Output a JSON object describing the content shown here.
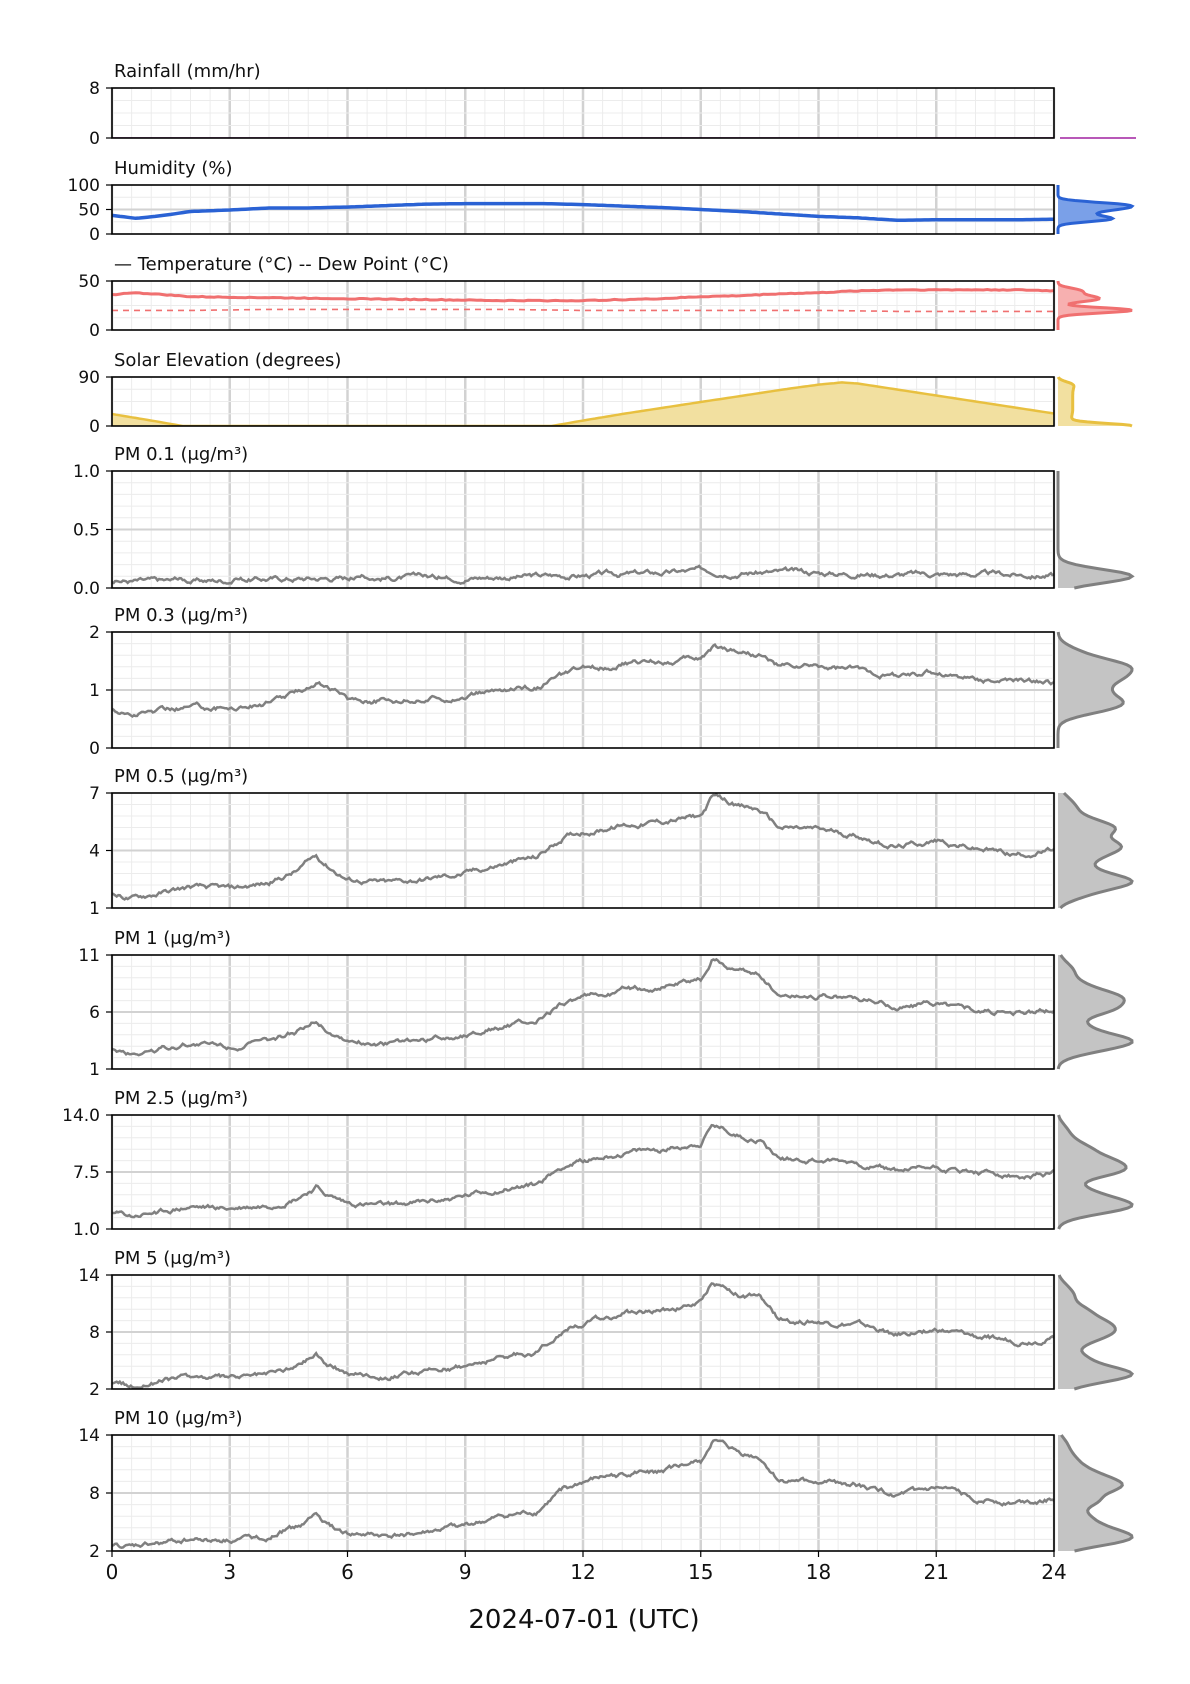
{
  "figure": {
    "xlabel": "2024-07-01 (UTC)"
  },
  "colors": {
    "rainfall": "#a020a0",
    "humidity": "#2a62d4",
    "temperature": "#f07070",
    "solar": "#e8c040",
    "solar_fill": "#f2e0a0",
    "pm": "#808080",
    "pm_fill": "#c4c4c4",
    "grid_major": "#d2d2d2",
    "grid_minor": "#ececec"
  },
  "chart_data": [
    {
      "id": "rainfall",
      "type": "line",
      "title": "Rainfall (mm/hr)",
      "ylim": [
        0,
        8
      ],
      "yticks": [
        "0",
        "8"
      ],
      "x_hours": [
        0,
        24
      ],
      "values": [
        0,
        0
      ]
    },
    {
      "id": "humidity",
      "type": "line",
      "title": "Humidity (%)",
      "ylim": [
        0,
        100
      ],
      "yticks": [
        "0",
        "50",
        "100"
      ],
      "x_hours": [
        0,
        0.6,
        1,
        1.5,
        2,
        3,
        4,
        5,
        6,
        7,
        8,
        9,
        10,
        11,
        12,
        13,
        14,
        15,
        16,
        17,
        18,
        19,
        20,
        21,
        22,
        23,
        24
      ],
      "values": [
        38,
        32,
        35,
        40,
        46,
        49,
        53,
        53,
        55,
        58,
        61,
        62,
        62,
        62,
        60,
        57,
        54,
        50,
        46,
        41,
        36,
        33,
        28,
        29,
        29,
        29,
        30
      ]
    },
    {
      "id": "temperature",
      "type": "line",
      "title": "Temperature (°C)",
      "series_note": "— Temperature (°C)    -- Dew Point (°C)",
      "ylim": [
        0,
        50
      ],
      "yticks": [
        "0",
        "50"
      ],
      "series": [
        {
          "name": "Temperature (°C)",
          "x_hours": [
            0,
            0.5,
            1,
            2,
            4,
            6,
            8,
            10,
            12,
            13,
            14,
            15,
            16,
            17,
            18,
            19,
            20,
            21,
            22,
            23,
            24
          ],
          "values": [
            36,
            38,
            37,
            34,
            33,
            32,
            31,
            30,
            30,
            31,
            32,
            34,
            35,
            37,
            38,
            40,
            41,
            41,
            41,
            41,
            40
          ]
        },
        {
          "name": "Dew Point (°C)",
          "x_hours": [
            0,
            2,
            4,
            6,
            8,
            10,
            12,
            14,
            16,
            18,
            20,
            22,
            24
          ],
          "values": [
            20,
            20,
            21,
            21,
            21,
            21,
            20,
            20,
            20,
            20,
            19,
            19,
            19
          ]
        }
      ]
    },
    {
      "id": "solar",
      "type": "area",
      "title": "Solar Elevation (degrees)",
      "ylim": [
        0,
        90
      ],
      "yticks": [
        "0",
        "90"
      ],
      "x_hours": [
        0,
        1,
        1.8,
        11.2,
        12,
        13,
        14,
        15,
        16,
        17,
        18,
        18.6,
        19,
        20,
        21,
        22,
        23,
        24
      ],
      "values": [
        22,
        10,
        0,
        0,
        10,
        22,
        33,
        44,
        55,
        66,
        76,
        80,
        78,
        67,
        56,
        45,
        34,
        23
      ]
    },
    {
      "id": "pm01",
      "type": "line",
      "title": "PM 0.1 (μg/m³)",
      "ylim": [
        0,
        1
      ],
      "yticks": [
        "0.0",
        "0.5",
        "1.0"
      ],
      "x_hours": [
        0,
        2,
        4,
        6,
        8,
        10,
        12,
        14,
        15,
        16,
        18,
        20,
        22,
        24
      ],
      "values": [
        0.06,
        0.06,
        0.08,
        0.09,
        0.09,
        0.1,
        0.11,
        0.13,
        0.15,
        0.14,
        0.13,
        0.12,
        0.12,
        0.11
      ]
    },
    {
      "id": "pm03",
      "type": "line",
      "title": "PM 0.3 (μg/m³)",
      "ylim": [
        0,
        2
      ],
      "yticks": [
        "0",
        "1",
        "2"
      ],
      "x_hours": [
        0,
        0.5,
        1,
        2,
        3,
        4,
        4.7,
        5.2,
        5.5,
        6,
        7,
        8,
        9,
        10,
        10.8,
        11.5,
        12,
        13,
        14,
        15,
        15.3,
        16,
        16.5,
        17,
        18,
        19,
        20,
        21,
        22,
        23,
        24
      ],
      "values": [
        0.65,
        0.58,
        0.62,
        0.72,
        0.7,
        0.78,
        0.95,
        1.15,
        1.05,
        0.85,
        0.82,
        0.85,
        0.9,
        1.0,
        1.05,
        1.25,
        1.35,
        1.45,
        1.5,
        1.55,
        1.75,
        1.68,
        1.62,
        1.4,
        1.4,
        1.35,
        1.25,
        1.3,
        1.2,
        1.15,
        1.12
      ]
    },
    {
      "id": "pm05",
      "type": "line",
      "title": "PM 0.5 (μg/m³)",
      "ylim": [
        1,
        7
      ],
      "yticks": [
        "1",
        "4",
        "7"
      ],
      "x_hours": [
        0,
        0.5,
        1,
        2,
        3,
        4,
        4.7,
        5.2,
        5.5,
        6,
        7,
        8,
        9,
        10,
        10.8,
        11.5,
        12,
        13,
        14,
        15,
        15.3,
        16,
        16.5,
        17,
        18,
        19,
        20,
        21,
        22,
        23,
        24
      ],
      "values": [
        1.7,
        1.5,
        1.7,
        2.1,
        2.0,
        2.3,
        2.9,
        3.7,
        3.2,
        2.5,
        2.3,
        2.5,
        2.8,
        3.3,
        3.6,
        4.7,
        5.0,
        5.3,
        5.5,
        5.8,
        6.8,
        6.3,
        6.1,
        5.2,
        5.1,
        4.8,
        4.2,
        4.5,
        4.1,
        3.8,
        4.0
      ]
    },
    {
      "id": "pm1",
      "type": "line",
      "title": "PM 1 (μg/m³)",
      "ylim": [
        1,
        11
      ],
      "yticks": [
        "1",
        "6",
        "11"
      ],
      "x_hours": [
        0,
        0.5,
        1,
        2,
        3,
        4,
        4.7,
        5.2,
        5.5,
        6,
        7,
        8,
        9,
        10,
        10.8,
        11.5,
        12,
        13,
        14,
        15,
        15.3,
        16,
        16.5,
        17,
        18,
        19,
        20,
        21,
        22,
        23,
        24
      ],
      "values": [
        2.7,
        2.3,
        2.6,
        3.2,
        3.0,
        3.3,
        4.2,
        5.4,
        4.4,
        3.5,
        3.2,
        3.5,
        4.0,
        4.8,
        5.0,
        6.8,
        7.2,
        7.9,
        8.2,
        8.8,
        10.6,
        9.6,
        9.3,
        7.5,
        7.5,
        7.2,
        6.4,
        6.8,
        6.2,
        5.8,
        6.1
      ]
    },
    {
      "id": "pm25",
      "type": "line",
      "title": "PM 2.5 (μg/m³)",
      "ylim": [
        1,
        14
      ],
      "yticks": [
        "1.0",
        "7.5",
        "14.0"
      ],
      "x_hours": [
        0,
        0.5,
        1,
        2,
        3,
        4,
        4.7,
        5.2,
        5.5,
        6,
        7,
        8,
        9,
        10,
        10.8,
        11.5,
        12,
        13,
        14,
        15,
        15.3,
        16,
        16.5,
        17,
        18,
        19,
        20,
        21,
        22,
        23,
        24
      ],
      "values": [
        2.8,
        2.4,
        2.8,
        3.5,
        3.3,
        3.7,
        4.6,
        5.8,
        4.8,
        3.9,
        3.6,
        4.0,
        4.7,
        5.6,
        6.0,
        8.2,
        8.8,
        9.6,
        10.0,
        10.8,
        12.8,
        11.6,
        11.2,
        9.0,
        8.9,
        8.6,
        7.6,
        8.1,
        7.4,
        6.9,
        7.3
      ]
    },
    {
      "id": "pm5",
      "type": "line",
      "title": "PM 5 (μg/m³)",
      "ylim": [
        2,
        14
      ],
      "yticks": [
        "2",
        "8",
        "14"
      ],
      "x_hours": [
        0,
        0.5,
        1,
        2,
        3,
        4,
        4.7,
        5.2,
        5.5,
        6,
        7,
        8,
        9,
        10,
        10.8,
        11.5,
        12,
        13,
        14,
        15,
        15.3,
        16,
        16.5,
        17,
        18,
        19,
        20,
        21,
        22,
        23,
        24
      ],
      "values": [
        2.6,
        2.3,
        2.7,
        3.3,
        3.1,
        3.5,
        4.4,
        5.8,
        4.6,
        3.7,
        3.4,
        3.8,
        4.5,
        5.4,
        5.9,
        8.3,
        9.0,
        9.9,
        10.3,
        11.1,
        13.4,
        12.0,
        11.6,
        9.2,
        9.1,
        8.8,
        7.7,
        8.3,
        7.5,
        7.0,
        7.4
      ]
    },
    {
      "id": "pm10",
      "type": "line",
      "title": "PM 10 (μg/m³)",
      "ylim": [
        2,
        14
      ],
      "yticks": [
        "2",
        "8",
        "14"
      ],
      "x_hours": [
        0,
        0.5,
        1,
        2,
        3,
        4,
        4.7,
        5.2,
        5.5,
        6,
        7,
        8,
        9,
        10,
        10.8,
        11.5,
        12,
        13,
        14,
        15,
        15.3,
        16,
        16.5,
        17,
        18,
        19,
        20,
        21,
        22,
        23,
        24
      ],
      "values": [
        2.6,
        2.3,
        2.7,
        3.3,
        3.1,
        3.5,
        4.4,
        5.8,
        4.6,
        3.7,
        3.4,
        3.8,
        4.5,
        5.4,
        5.9,
        8.3,
        9.0,
        9.9,
        10.3,
        11.1,
        13.4,
        12.0,
        11.6,
        9.2,
        9.1,
        8.8,
        7.7,
        8.3,
        7.5,
        7.0,
        7.4
      ]
    }
  ],
  "x_axis": {
    "range_hours": [
      0,
      24
    ],
    "ticks": [
      "0",
      "3",
      "6",
      "9",
      "12",
      "15",
      "18",
      "21",
      "24"
    ]
  }
}
